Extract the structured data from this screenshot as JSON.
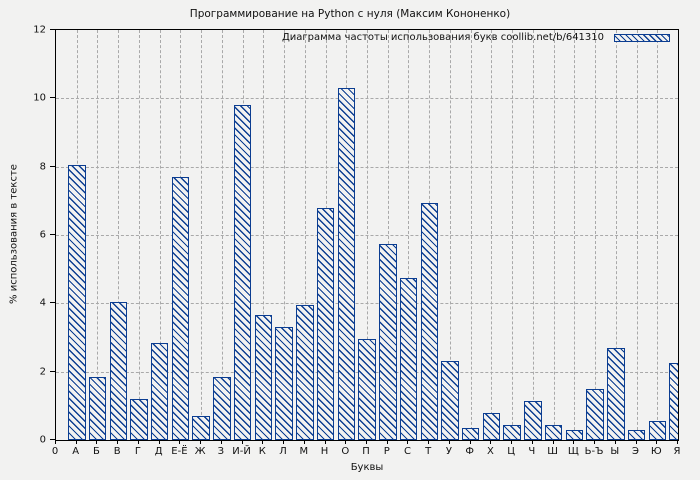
{
  "figure": {
    "title": "Программирование на Python с нуля (Максим Кононенко)",
    "background": "#f2f2f1"
  },
  "legend": {
    "label": "Диаграмма частоты использования букв coollib.net/b/641310",
    "position": "upper-right",
    "swatch": "hatched-bar-swatch"
  },
  "axes": {
    "ylabel": "% использования в тексте",
    "xlabel": "Буквы",
    "origin_tick_label": "0",
    "y_ticks": [
      0,
      2,
      4,
      6,
      8,
      10,
      12
    ],
    "grid": "dashed"
  },
  "colors": {
    "bar_edge": "#0b3d91",
    "grid": "#a9a9a9",
    "background": "#f2f2f1",
    "frame": "#000000"
  },
  "chart_data": {
    "type": "bar",
    "title": "Программирование на Python с нуля (Максим Кононенко)",
    "legend_entry": "Диаграмма частоты использования букв coollib.net/b/641310",
    "xlabel": "Буквы",
    "ylabel": "% использования в тексте",
    "ylim": [
      0,
      12
    ],
    "grid": true,
    "legend_position": "upper right",
    "bar_style": {
      "edge_color": "#0b3d91",
      "fill": "none",
      "hatch": "\\\\"
    },
    "categories": [
      "А",
      "Б",
      "В",
      "Г",
      "Д",
      "Е-Ё",
      "Ж",
      "З",
      "И-Й",
      "К",
      "Л",
      "М",
      "Н",
      "О",
      "П",
      "Р",
      "С",
      "Т",
      "У",
      "Ф",
      "Х",
      "Ц",
      "Ч",
      "Ш",
      "Щ",
      "Ь-Ъ",
      "Ы",
      "Э",
      "Ю",
      "Я"
    ],
    "values": [
      8.05,
      1.85,
      4.05,
      1.2,
      2.85,
      7.7,
      0.7,
      1.85,
      9.8,
      3.65,
      3.3,
      3.95,
      6.8,
      10.3,
      2.95,
      5.75,
      4.75,
      6.95,
      2.3,
      0.35,
      0.8,
      0.45,
      1.15,
      0.45,
      0.3,
      1.5,
      2.7,
      0.3,
      0.55,
      2.25
    ]
  }
}
